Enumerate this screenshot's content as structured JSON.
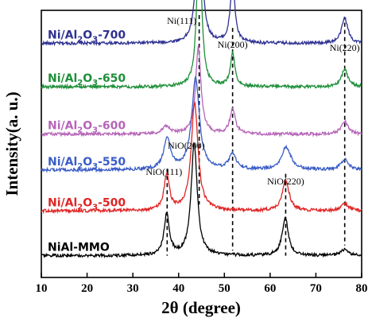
{
  "chart_data": {
    "type": "line",
    "xlabel": "2θ (degree)",
    "ylabel": "Intensity(a. u.)",
    "xlim": [
      10,
      80
    ],
    "xticks": [
      10,
      20,
      30,
      40,
      50,
      60,
      70,
      80
    ],
    "y_ticks_shown": false,
    "grid": false,
    "series": [
      {
        "name": "Ni/Al2O3-700",
        "label_main": "Ni/Al",
        "label_sub": "2",
        "label_o": "O",
        "label_sub2": "3",
        "label_tail": "-700",
        "color": "#2e3192",
        "baseline": 0.89,
        "peaks": [
          [
            44.5,
            0.86,
            0.55
          ],
          [
            51.8,
            0.24,
            0.6
          ],
          [
            76.3,
            0.1,
            0.8
          ]
        ]
      },
      {
        "name": "Ni/Al2O3-650",
        "label_main": "Ni/Al",
        "label_sub": "2",
        "label_o": "O",
        "label_sub2": "3",
        "label_tail": "-650",
        "color": "#1f8f3a",
        "baseline": 0.72,
        "peaks": [
          [
            44.5,
            0.62,
            0.6
          ],
          [
            51.8,
            0.13,
            0.6
          ],
          [
            76.3,
            0.07,
            0.8
          ]
        ]
      },
      {
        "name": "Ni/Al2O3-600",
        "label_main": "Ni/Al",
        "label_sub": "2",
        "label_o": "O",
        "label_sub2": "3",
        "label_tail": "-600",
        "color": "#b565b8",
        "baseline": 0.535,
        "peaks": [
          [
            44.3,
            0.34,
            0.7
          ],
          [
            51.8,
            0.1,
            0.7
          ],
          [
            76.3,
            0.05,
            0.9
          ],
          [
            37.3,
            0.03,
            1.0
          ]
        ]
      },
      {
        "name": "Ni/Al2O3-550",
        "label_main": "Ni/Al",
        "label_sub": "2",
        "label_o": "O",
        "label_sub2": "3",
        "label_tail": "-550",
        "color": "#3a5cc6",
        "baseline": 0.395,
        "peaks": [
          [
            37.5,
            0.12,
            0.9
          ],
          [
            43.7,
            0.36,
            1.0
          ],
          [
            51.8,
            0.06,
            0.9
          ],
          [
            63.5,
            0.09,
            1.2
          ],
          [
            76.3,
            0.04,
            1.0
          ]
        ]
      },
      {
        "name": "Ni/Al2O3-500",
        "label_main": "Ni/Al",
        "label_sub": "2",
        "label_o": "O",
        "label_sub2": "3",
        "label_tail": "-500",
        "color": "#e02525",
        "baseline": 0.235,
        "peaks": [
          [
            37.4,
            0.14,
            0.7
          ],
          [
            43.5,
            0.42,
            0.9
          ],
          [
            63.4,
            0.12,
            0.9
          ],
          [
            76.3,
            0.03,
            0.9
          ]
        ]
      },
      {
        "name": "NiAl-MMO",
        "label_main": "NiAl-MMO",
        "label_sub": "",
        "label_o": "",
        "label_sub2": "",
        "label_tail": "",
        "color": "#000000",
        "baseline": 0.06,
        "peaks": [
          [
            37.4,
            0.16,
            0.7
          ],
          [
            43.4,
            0.44,
            0.8
          ],
          [
            63.3,
            0.15,
            0.8
          ],
          [
            76.3,
            0.025,
            0.9
          ]
        ]
      }
    ],
    "annotations": [
      {
        "text": "Ni(111)",
        "x": 44.5,
        "line_top": 1.0,
        "line_bottom": 0.26
      },
      {
        "text": "Ni(200)",
        "x": 51.8,
        "line_top": 0.95,
        "line_bottom": 0.08
      },
      {
        "text": "Ni(220)",
        "x": 76.3,
        "line_top": 0.97,
        "line_bottom": 0.1
      },
      {
        "text": "NiO(200)",
        "x": 43.4,
        "line_top": 0.0,
        "line_bottom": 0.0
      },
      {
        "text": "NiO(111)",
        "x": 37.5,
        "line_top": 0.4,
        "line_bottom": 0.06
      },
      {
        "text": "NiO(220)",
        "x": 63.4,
        "line_top": 0.38,
        "line_bottom": 0.06
      }
    ]
  }
}
